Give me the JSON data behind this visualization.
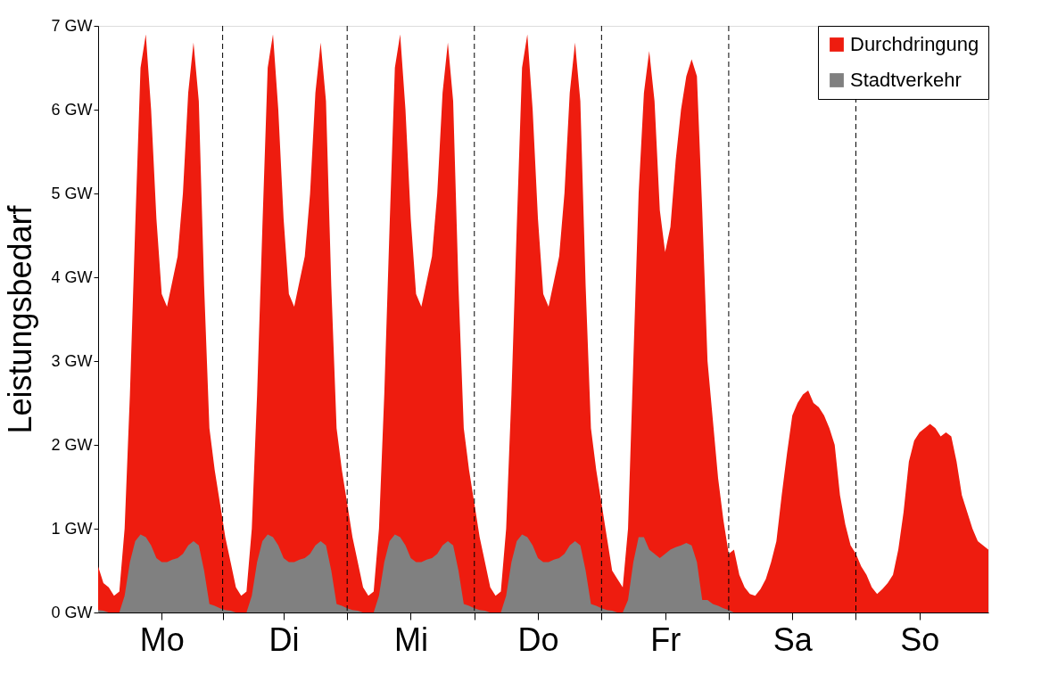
{
  "chart_data": {
    "type": "area",
    "ylabel": "Leistungsbedarf",
    "categories": [
      null,
      null,
      null,
      null,
      null,
      null,
      null,
      null,
      null,
      null,
      null,
      null,
      "Mo",
      null,
      null,
      null,
      null,
      null,
      null,
      null,
      null,
      null,
      null,
      null,
      null,
      null,
      null,
      null,
      null,
      null,
      null,
      null,
      null,
      null,
      null,
      "Di",
      null,
      null,
      null,
      null,
      null,
      null,
      null,
      null,
      null,
      null,
      null,
      null,
      null,
      null,
      null,
      null,
      null,
      null,
      null,
      null,
      null,
      null,
      null,
      "Mi",
      null,
      null,
      null,
      null,
      null,
      null,
      null,
      null,
      null,
      null,
      null,
      null,
      null,
      null,
      null,
      null,
      null,
      null,
      null,
      null,
      null,
      null,
      null,
      "Do",
      null,
      null,
      null,
      null,
      null,
      null,
      null,
      null,
      null,
      null,
      null,
      null,
      null,
      null,
      null,
      null,
      null,
      null,
      null,
      null,
      null,
      null,
      null,
      "Fr",
      null,
      null,
      null,
      null,
      null,
      null,
      null,
      null,
      null,
      null,
      null,
      null,
      null,
      null,
      null,
      null,
      null,
      null,
      null,
      null,
      null,
      null,
      null,
      "Sa",
      null,
      null,
      null,
      null,
      null,
      null,
      null,
      null,
      null,
      null,
      null,
      null,
      null,
      null,
      null,
      null,
      null,
      null,
      null,
      null,
      null,
      null,
      null,
      "So",
      null,
      null,
      null,
      null,
      null,
      null,
      null,
      null,
      null,
      null,
      null,
      null,
      null
    ],
    "series": [
      {
        "name": "Durchdringung",
        "color": "#ee1c0f",
        "values": [
          0.55,
          0.35,
          0.3,
          0.2,
          0.25,
          1.0,
          2.6,
          4.6,
          6.5,
          6.9,
          6.0,
          4.7,
          3.8,
          3.65,
          3.95,
          4.25,
          5.0,
          6.2,
          6.8,
          6.1,
          3.9,
          2.2,
          1.7,
          1.3,
          0.9,
          0.6,
          0.3,
          0.2,
          0.25,
          1.0,
          2.6,
          4.6,
          6.5,
          6.9,
          6.0,
          4.7,
          3.8,
          3.65,
          3.95,
          4.25,
          5.0,
          6.2,
          6.8,
          6.1,
          3.9,
          2.2,
          1.7,
          1.3,
          0.9,
          0.6,
          0.3,
          0.2,
          0.25,
          1.0,
          2.6,
          4.6,
          6.5,
          6.9,
          6.0,
          4.7,
          3.8,
          3.65,
          3.95,
          4.25,
          5.0,
          6.2,
          6.8,
          6.1,
          3.9,
          2.2,
          1.7,
          1.3,
          0.9,
          0.6,
          0.3,
          0.2,
          0.25,
          1.0,
          2.6,
          4.6,
          6.5,
          6.9,
          6.0,
          4.7,
          3.8,
          3.65,
          3.95,
          4.25,
          5.0,
          6.2,
          6.8,
          6.1,
          3.9,
          2.2,
          1.7,
          1.3,
          0.9,
          0.5,
          0.4,
          0.3,
          1.0,
          3.0,
          5.0,
          6.2,
          6.7,
          6.1,
          4.8,
          4.3,
          4.6,
          5.4,
          6.0,
          6.4,
          6.6,
          6.4,
          4.8,
          3.0,
          2.3,
          1.6,
          1.1,
          0.7,
          0.75,
          0.45,
          0.3,
          0.22,
          0.2,
          0.28,
          0.4,
          0.6,
          0.85,
          1.4,
          1.9,
          2.35,
          2.5,
          2.6,
          2.65,
          2.5,
          2.45,
          2.35,
          2.2,
          2.0,
          1.4,
          1.05,
          0.8,
          0.7,
          0.55,
          0.45,
          0.3,
          0.22,
          0.28,
          0.35,
          0.45,
          0.75,
          1.2,
          1.8,
          2.05,
          2.15,
          2.2,
          2.25,
          2.2,
          2.1,
          2.15,
          2.1,
          1.8,
          1.4,
          1.2,
          1.0,
          0.85,
          0.8,
          0.75
        ]
      },
      {
        "name": "Stadtverkehr",
        "color": "#808080",
        "values": [
          0.03,
          0.02,
          0,
          0,
          0,
          0.2,
          0.6,
          0.85,
          0.93,
          0.9,
          0.8,
          0.65,
          0.6,
          0.6,
          0.63,
          0.65,
          0.7,
          0.8,
          0.85,
          0.8,
          0.5,
          0.1,
          0.08,
          0.05,
          0.03,
          0.02,
          0,
          0,
          0,
          0.2,
          0.6,
          0.85,
          0.93,
          0.9,
          0.8,
          0.65,
          0.6,
          0.6,
          0.63,
          0.65,
          0.7,
          0.8,
          0.85,
          0.8,
          0.5,
          0.1,
          0.08,
          0.05,
          0.03,
          0.02,
          0,
          0,
          0,
          0.2,
          0.6,
          0.85,
          0.93,
          0.9,
          0.8,
          0.65,
          0.6,
          0.6,
          0.63,
          0.65,
          0.7,
          0.8,
          0.85,
          0.8,
          0.5,
          0.1,
          0.08,
          0.05,
          0.03,
          0.02,
          0,
          0,
          0,
          0.2,
          0.6,
          0.85,
          0.93,
          0.9,
          0.8,
          0.65,
          0.6,
          0.6,
          0.63,
          0.65,
          0.7,
          0.8,
          0.85,
          0.8,
          0.5,
          0.1,
          0.08,
          0.05,
          0.03,
          0.02,
          0,
          0,
          0.15,
          0.6,
          0.9,
          0.9,
          0.75,
          0.7,
          0.65,
          0.7,
          0.75,
          0.78,
          0.8,
          0.83,
          0.8,
          0.6,
          0.15,
          0.15,
          0.1,
          0.08,
          0.05,
          0.03,
          0,
          0,
          0,
          0,
          0,
          0,
          0,
          0,
          0,
          0,
          0,
          0,
          0,
          0,
          0,
          0,
          0,
          0,
          0,
          0,
          0,
          0,
          0,
          0,
          0,
          0,
          0,
          0,
          0,
          0,
          0,
          0,
          0,
          0,
          0,
          0,
          0,
          0,
          0,
          0,
          0,
          0,
          0,
          0,
          0,
          0,
          0,
          0,
          0
        ]
      }
    ],
    "ylim": [
      0,
      7
    ],
    "yticks": [
      {
        "value": 0,
        "label": "0 GW"
      },
      {
        "value": 1,
        "label": "1 GW"
      },
      {
        "value": 2,
        "label": "2 GW"
      },
      {
        "value": 3,
        "label": "3 GW"
      },
      {
        "value": 4,
        "label": "4 GW"
      },
      {
        "value": 5,
        "label": "5 GW"
      },
      {
        "value": 6,
        "label": "6 GW"
      },
      {
        "value": 7,
        "label": "7 GW"
      }
    ],
    "grid": false,
    "legend": "top right"
  }
}
